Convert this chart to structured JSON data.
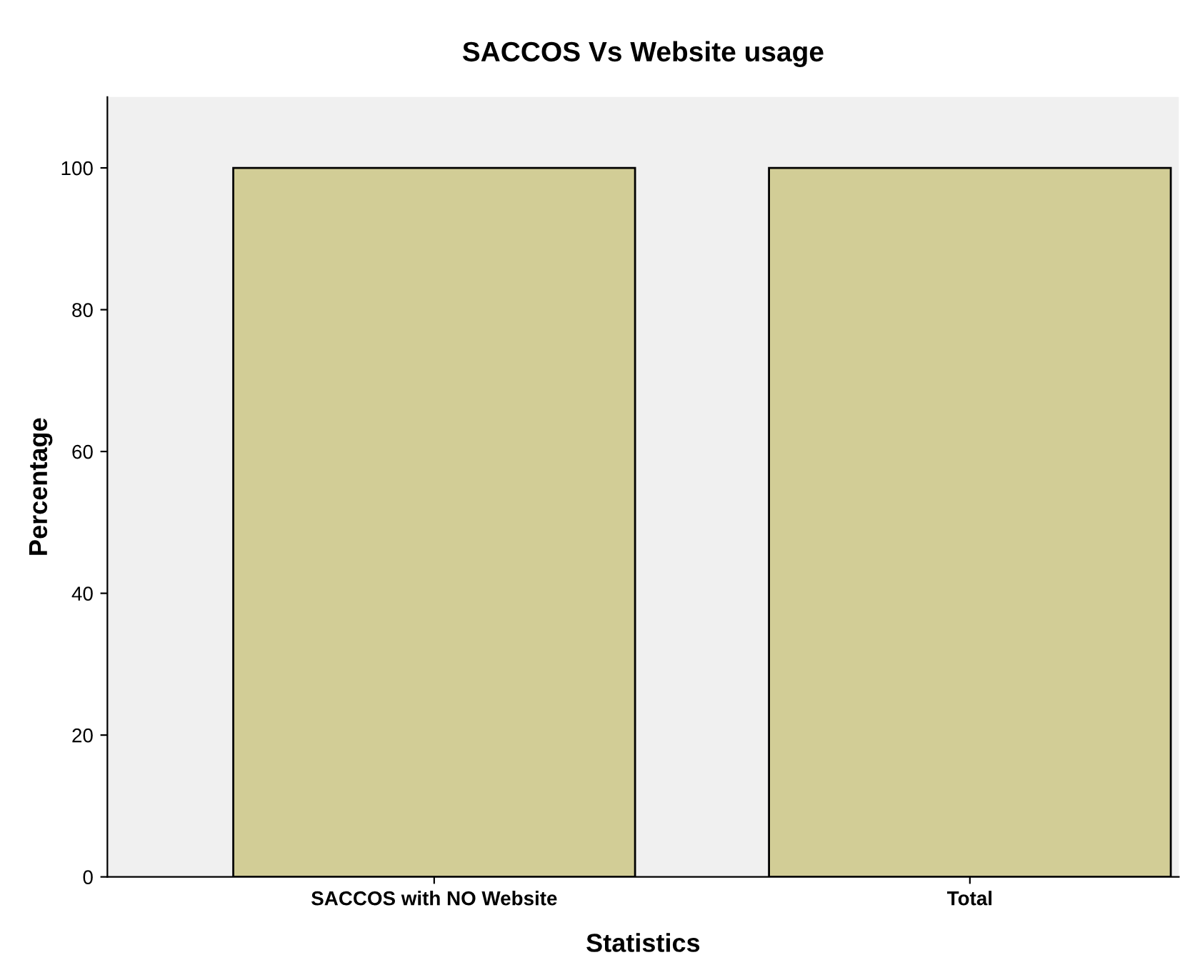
{
  "chart_data": {
    "type": "bar",
    "title": "SACCOS Vs Website usage",
    "xlabel": "Statistics",
    "ylabel": "Percentage",
    "categories": [
      "SACCOS with NO Website",
      "Total"
    ],
    "values": [
      100,
      100
    ],
    "color": "#d2cd96",
    "ylim": [
      0,
      110
    ],
    "yticks": [
      0,
      20,
      40,
      60,
      80,
      100
    ],
    "grid": false,
    "legend": false
  }
}
